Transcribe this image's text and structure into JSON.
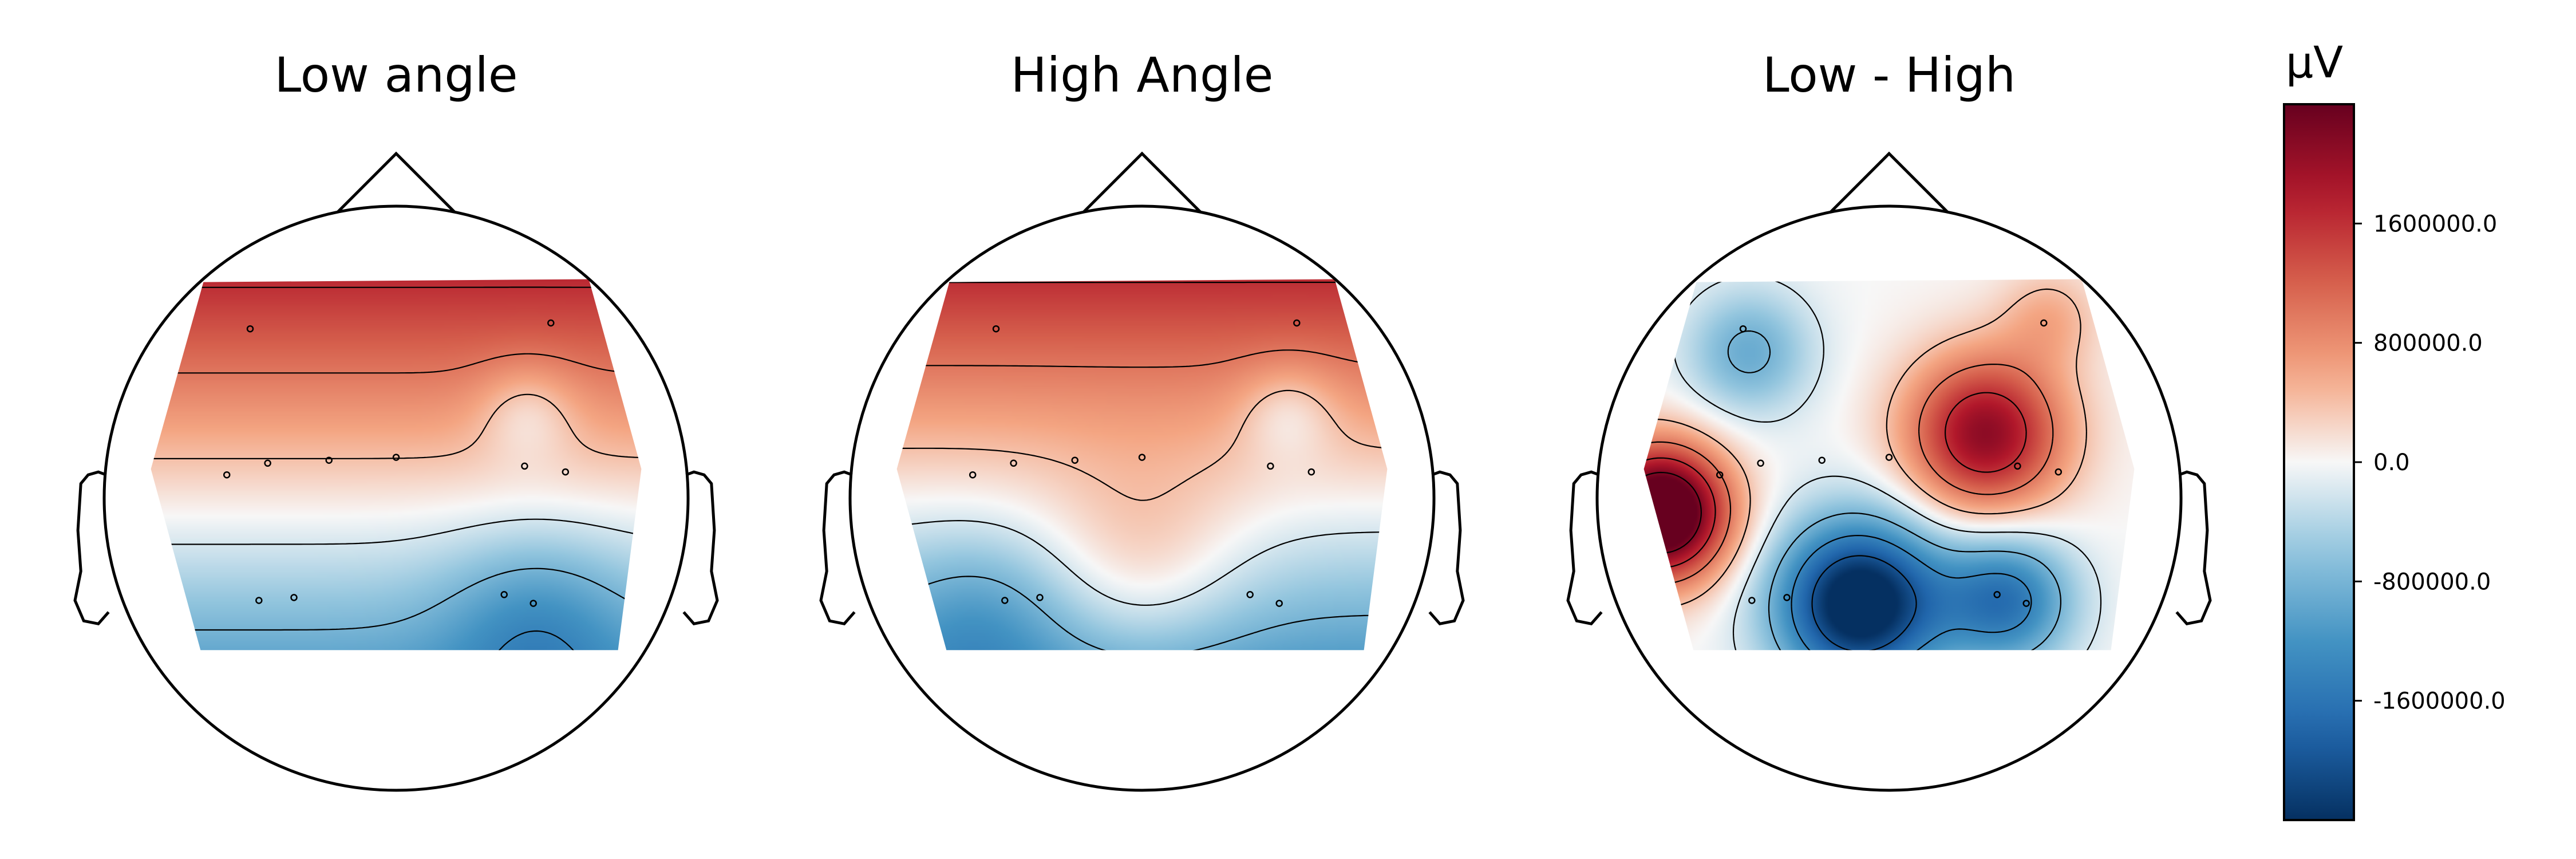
{
  "chart_data": {
    "type": "heatmap",
    "subtype": "eeg-topomap",
    "colormap": "RdBu_r",
    "unit_label": "µV",
    "colorbar": {
      "vmin": -2400000,
      "vmax": 2400000,
      "ticks": [
        1600000,
        800000,
        0,
        -800000,
        -1600000
      ],
      "tick_labels": [
        "1600000.0",
        "800000.0",
        "0.0",
        "-800000.0",
        "-1600000.0"
      ],
      "placement": "right"
    },
    "panels": [
      {
        "title": "Low angle",
        "description_values": "front high (~+1600000), back low (~-2000000)",
        "sensors": [
          {
            "x": -0.5,
            "y": 0.58
          },
          {
            "x": 0.53,
            "y": 0.6
          },
          {
            "x": -0.58,
            "y": 0.08
          },
          {
            "x": -0.44,
            "y": 0.12
          },
          {
            "x": -0.23,
            "y": 0.13
          },
          {
            "x": 0.0,
            "y": 0.14
          },
          {
            "x": 0.44,
            "y": 0.11
          },
          {
            "x": 0.58,
            "y": 0.09
          },
          {
            "x": -0.47,
            "y": -0.35
          },
          {
            "x": -0.35,
            "y": -0.34
          },
          {
            "x": 0.37,
            "y": -0.33
          },
          {
            "x": 0.47,
            "y": -0.36
          }
        ],
        "field": {
          "base": 1550000,
          "slope": 3300000,
          "zero_y": -0.06,
          "gaussians": [
            {
              "x": 0.45,
              "y": 0.3,
              "s": 0.12,
              "a": -500000
            },
            {
              "x": 0.48,
              "y": -0.42,
              "s": 0.22,
              "a": -600000
            }
          ]
        }
      },
      {
        "title": "High Angle",
        "description_values": "front high (~+1700000), back low (~-1800000)",
        "sensors": [
          {
            "x": -0.5,
            "y": 0.58
          },
          {
            "x": 0.53,
            "y": 0.6
          },
          {
            "x": -0.58,
            "y": 0.08
          },
          {
            "x": -0.44,
            "y": 0.12
          },
          {
            "x": -0.23,
            "y": 0.13
          },
          {
            "x": 0.0,
            "y": 0.14
          },
          {
            "x": 0.44,
            "y": 0.11
          },
          {
            "x": 0.58,
            "y": 0.09
          },
          {
            "x": -0.47,
            "y": -0.35
          },
          {
            "x": -0.35,
            "y": -0.34
          },
          {
            "x": 0.37,
            "y": -0.33
          },
          {
            "x": 0.47,
            "y": -0.36
          }
        ],
        "field": {
          "base": 1650000,
          "slope": 3400000,
          "zero_y": -0.02,
          "gaussians": [
            {
              "x": 0.5,
              "y": 0.3,
              "s": 0.12,
              "a": -500000
            },
            {
              "x": 0.0,
              "y": -0.25,
              "s": 0.25,
              "a": 600000
            },
            {
              "x": -0.55,
              "y": -0.4,
              "s": 0.2,
              "a": -400000
            }
          ]
        }
      },
      {
        "title": "Low - High",
        "description_values": "left-side max (~+2400000), right-frontal high (~+1600000), posterior min (~-2400000)",
        "sensors": [
          {
            "x": -0.5,
            "y": 0.58
          },
          {
            "x": 0.53,
            "y": 0.6
          },
          {
            "x": -0.58,
            "y": 0.08
          },
          {
            "x": -0.44,
            "y": 0.12
          },
          {
            "x": -0.23,
            "y": 0.13
          },
          {
            "x": 0.0,
            "y": 0.14
          },
          {
            "x": 0.44,
            "y": 0.11
          },
          {
            "x": 0.58,
            "y": 0.09
          },
          {
            "x": -0.47,
            "y": -0.35
          },
          {
            "x": -0.35,
            "y": -0.34
          },
          {
            "x": 0.37,
            "y": -0.33
          },
          {
            "x": 0.47,
            "y": -0.36
          }
        ],
        "field": {
          "base": 0,
          "slope": 0,
          "zero_y": 0,
          "gaussians": [
            {
              "x": -0.78,
              "y": -0.05,
              "s": 0.16,
              "a": 3200000
            },
            {
              "x": 0.33,
              "y": 0.22,
              "s": 0.19,
              "a": 2100000
            },
            {
              "x": -0.1,
              "y": -0.36,
              "s": 0.2,
              "a": -2800000
            },
            {
              "x": 0.4,
              "y": -0.35,
              "s": 0.16,
              "a": -1600000
            },
            {
              "x": -0.48,
              "y": 0.5,
              "s": 0.15,
              "a": -900000
            },
            {
              "x": 0.55,
              "y": 0.62,
              "s": 0.12,
              "a": 500000
            }
          ]
        }
      }
    ],
    "contour_levels": [
      -2000000,
      -1400000,
      -800000,
      -200000,
      400000,
      1000000,
      1600000,
      2200000
    ]
  }
}
